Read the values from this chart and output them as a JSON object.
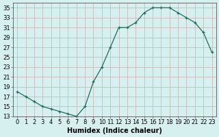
{
  "x": [
    0,
    1,
    2,
    3,
    4,
    5,
    6,
    7,
    8,
    9,
    10,
    11,
    12,
    13,
    14,
    15,
    16,
    17,
    18,
    19,
    20,
    21,
    22,
    23
  ],
  "y": [
    18,
    17,
    16,
    15,
    14.5,
    14,
    13.5,
    13,
    15,
    20,
    23,
    27,
    31,
    31,
    32,
    34,
    35,
    35,
    35,
    34,
    33,
    32,
    30,
    26
  ],
  "xlabel": "Humidex (Indice chaleur)",
  "line_color": "#1a6b5a",
  "marker": "+",
  "bg_color": "#d6f0f0",
  "grid_color": "#c8b8b8",
  "ylim": [
    13,
    36
  ],
  "xlim": [
    -0.5,
    23.5
  ],
  "yticks": [
    13,
    15,
    17,
    19,
    21,
    23,
    25,
    27,
    29,
    31,
    33,
    35
  ],
  "xticks": [
    0,
    1,
    2,
    3,
    4,
    5,
    6,
    7,
    8,
    9,
    10,
    11,
    12,
    13,
    14,
    15,
    16,
    17,
    18,
    19,
    20,
    21,
    22,
    23
  ],
  "tick_fontsize": 6,
  "xlabel_fontsize": 7
}
